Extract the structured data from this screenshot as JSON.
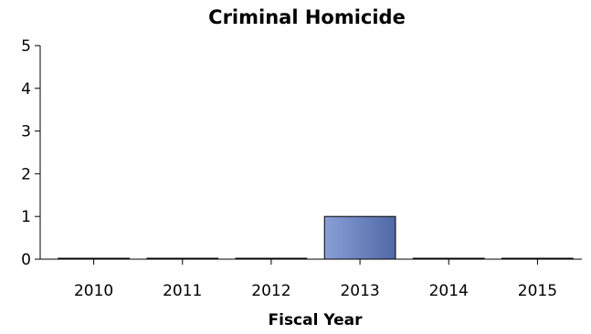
{
  "chart_data": {
    "type": "bar",
    "title": "Criminal Homicide",
    "xlabel": "Fiscal Year",
    "ylabel": "",
    "categories": [
      "2010",
      "2011",
      "2012",
      "2013",
      "2014",
      "2015"
    ],
    "values": [
      0,
      0,
      0,
      1,
      0,
      0
    ],
    "ylim": [
      0,
      5
    ],
    "yticks": [
      0,
      1,
      2,
      3,
      4,
      5
    ],
    "grid": false,
    "legend": "none",
    "colors": {
      "bar_light": "#8a9fd6",
      "bar_dark": "#4f69a8",
      "bar_edge": "#000000"
    }
  }
}
